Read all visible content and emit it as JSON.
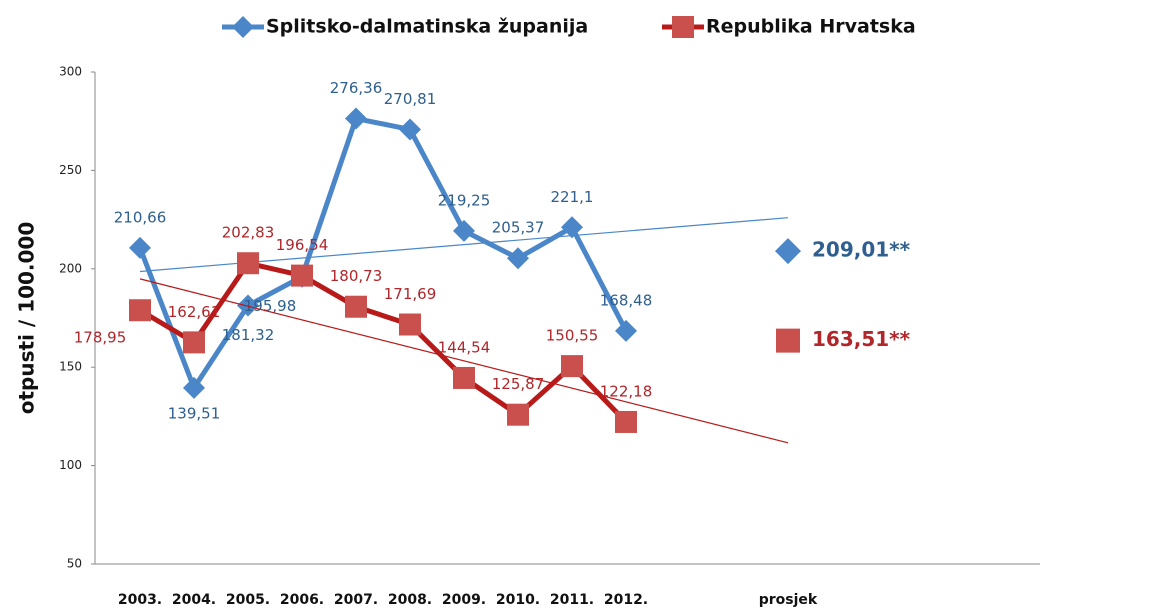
{
  "chart_data": {
    "type": "line",
    "y_label": "otpusti / 100.000",
    "categories": [
      "2003.",
      "2004.",
      "2005.",
      "2006.",
      "2007.",
      "2008.",
      "2009.",
      "2010.",
      "2011.",
      "2012.",
      null,
      null,
      "prosjek"
    ],
    "series": [
      {
        "name": "Splitsko-dalmatinska županija",
        "color": "#4a86c8",
        "label_color": "#2e5f8e",
        "marker": "diamond",
        "trendline": true,
        "values": [
          210.66,
          139.51,
          181.32,
          195.98,
          276.36,
          270.81,
          219.25,
          205.37,
          221.1,
          168.48,
          null,
          null,
          209.01
        ],
        "value_labels": [
          "210,66",
          "139,51",
          "181,32",
          "195,98",
          "276,36",
          "270,81",
          "219,25",
          "205,37",
          "221,1",
          "168,48",
          null,
          null,
          "209,01**"
        ]
      },
      {
        "name": "Republika Hrvatska",
        "color": "#b81a1a",
        "marker_color": "#c9504c",
        "label_color": "#b0262a",
        "marker": "square",
        "trendline": true,
        "values": [
          178.95,
          162.61,
          202.83,
          196.54,
          180.73,
          171.69,
          144.54,
          125.87,
          150.55,
          122.18,
          null,
          null,
          163.51
        ],
        "value_labels": [
          "178,95",
          "162,61",
          "202,83",
          "196,54",
          "180,73",
          "171,69",
          "144,54",
          "125,87",
          "150,55",
          "122,18",
          null,
          null,
          "163,51**"
        ]
      }
    ],
    "ylim": [
      50,
      300
    ],
    "yticks": [
      50,
      100,
      150,
      200,
      250,
      300
    ],
    "grid": false
  }
}
